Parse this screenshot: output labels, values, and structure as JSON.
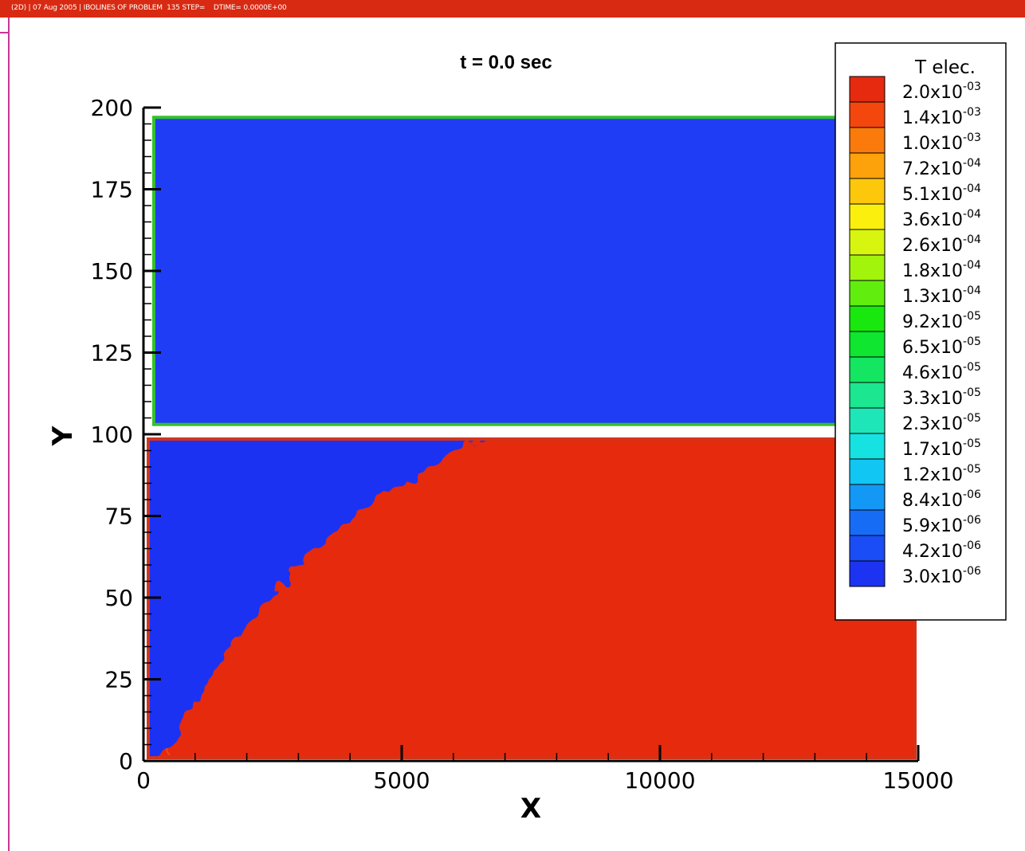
{
  "header": {
    "text": "(2D) | 07 Aug 2005 | IBOLINES OF PROBLEM  135 STEP=    DTIME= 0.0000E+00"
  },
  "chart_data": {
    "type": "heatmap",
    "title": "t = 0.0 sec",
    "xlabel": "X",
    "ylabel": "Y",
    "xlim": [
      0,
      15000
    ],
    "ylim": [
      0,
      200
    ],
    "x_ticks": [
      "0",
      "5000",
      "10000",
      "15000"
    ],
    "x_tick_values": [
      0,
      5000,
      10000,
      15000
    ],
    "y_ticks": [
      "0",
      "25",
      "50",
      "75",
      "100",
      "125",
      "150",
      "175",
      "200"
    ],
    "y_tick_values": [
      0,
      25,
      50,
      75,
      100,
      125,
      150,
      175,
      200
    ],
    "regions": [
      {
        "name": "upper",
        "x_range": [
          200,
          15000
        ],
        "y_range": [
          103,
          197
        ],
        "fill": "#1f3df5",
        "border": "#33c12a",
        "uniform_level": "3.0x10-06"
      },
      {
        "name": "lower",
        "x_range": [
          0,
          15000
        ],
        "y_range": [
          0,
          99
        ],
        "border": "#d4341a"
      }
    ],
    "legend": {
      "title": "T elec.",
      "placement": "top-right",
      "levels": [
        {
          "mantissa": "2.0x10",
          "exp": "-03",
          "color": "#e52a10"
        },
        {
          "mantissa": "1.4x10",
          "exp": "-03",
          "color": "#f4470d"
        },
        {
          "mantissa": "1.0x10",
          "exp": "-03",
          "color": "#fa7a0c"
        },
        {
          "mantissa": "7.2x10",
          "exp": "-04",
          "color": "#fda20b"
        },
        {
          "mantissa": "5.1x10",
          "exp": "-04",
          "color": "#fdc80c"
        },
        {
          "mantissa": "3.6x10",
          "exp": "-04",
          "color": "#fbef0d"
        },
        {
          "mantissa": "2.6x10",
          "exp": "-04",
          "color": "#d7f50e"
        },
        {
          "mantissa": "1.8x10",
          "exp": "-04",
          "color": "#a2f40d"
        },
        {
          "mantissa": "1.3x10",
          "exp": "-04",
          "color": "#61ee0e"
        },
        {
          "mantissa": "9.2x10",
          "exp": "-05",
          "color": "#19e80f"
        },
        {
          "mantissa": "6.5x10",
          "exp": "-05",
          "color": "#0ee62f"
        },
        {
          "mantissa": "4.6x10",
          "exp": "-05",
          "color": "#14e662"
        },
        {
          "mantissa": "3.3x10",
          "exp": "-05",
          "color": "#1ce68f"
        },
        {
          "mantissa": "2.3x10",
          "exp": "-05",
          "color": "#1fe6b8"
        },
        {
          "mantissa": "1.7x10",
          "exp": "-05",
          "color": "#16e2e2"
        },
        {
          "mantissa": "1.2x10",
          "exp": "-05",
          "color": "#12c6f4"
        },
        {
          "mantissa": "8.4x10",
          "exp": "-06",
          "color": "#1398f6"
        },
        {
          "mantissa": "5.9x10",
          "exp": "-06",
          "color": "#166cf5"
        },
        {
          "mantissa": "4.2x10",
          "exp": "-06",
          "color": "#1a4df5"
        },
        {
          "mantissa": "3.0x10",
          "exp": "-06",
          "color": "#1c33f2"
        }
      ]
    }
  }
}
